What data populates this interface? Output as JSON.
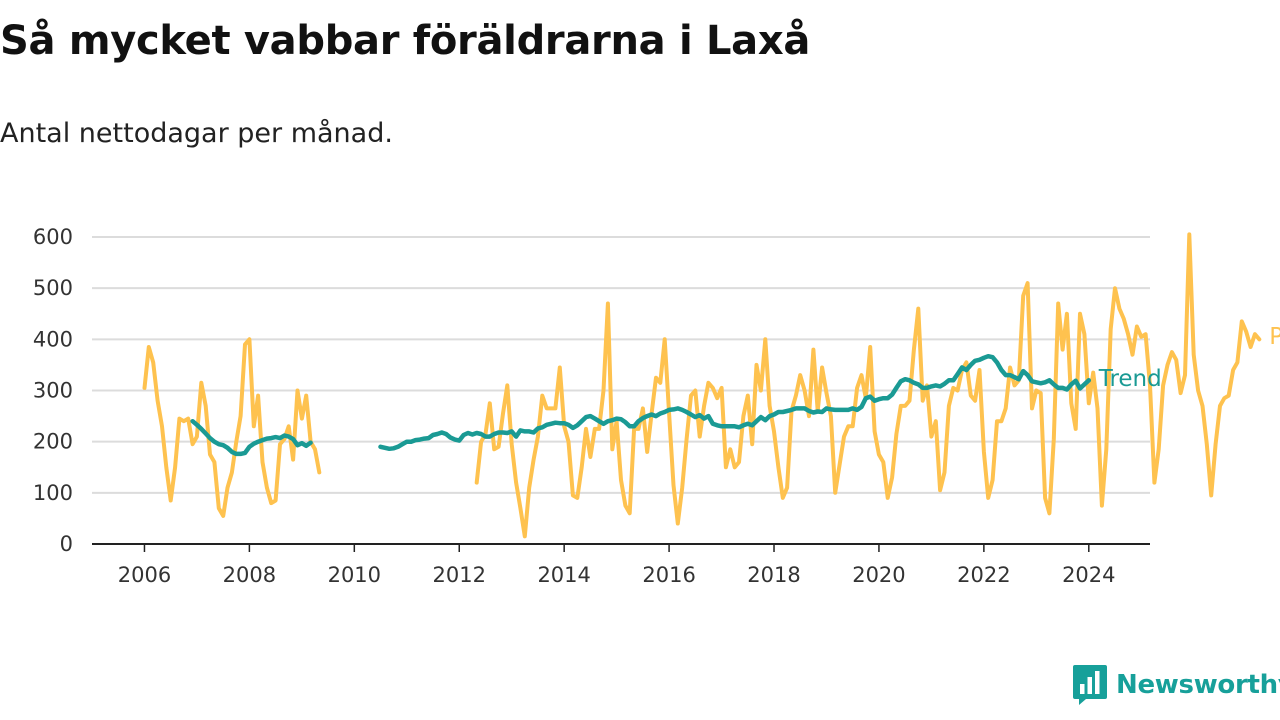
{
  "chart_data": {
    "type": "line",
    "title": "Så mycket vabbar föräldrarna i Laxå",
    "subtitle": "Antal nettodagar per månad.",
    "ylim": [
      0,
      600
    ],
    "yticks": [
      0,
      100,
      200,
      300,
      400,
      500,
      600
    ],
    "xlim": [
      "2005-01",
      "2025-03"
    ],
    "xticks": [
      "2006",
      "2008",
      "2010",
      "2012",
      "2014",
      "2016",
      "2018",
      "2020",
      "2022",
      "2024"
    ],
    "grid": true,
    "legend": "inline labels at line ends",
    "series": [
      {
        "name": "Per månad",
        "color": "#fec24f",
        "start": "2006-01",
        "values": [
          305,
          385,
          355,
          280,
          230,
          150,
          85,
          150,
          245,
          240,
          245,
          195,
          210,
          315,
          270,
          175,
          160,
          70,
          55,
          110,
          140,
          200,
          250,
          390,
          400,
          230,
          290,
          160,
          110,
          80,
          85,
          195,
          205,
          230,
          165,
          300,
          245,
          290,
          200,
          185,
          140,
          null,
          null,
          null,
          null,
          null,
          null,
          null,
          null,
          null,
          null,
          null,
          null,
          null,
          null,
          null,
          null,
          null,
          null,
          null,
          null,
          null,
          null,
          null,
          null,
          null,
          null,
          null,
          null,
          null,
          null,
          null,
          null,
          null,
          null,
          null,
          120,
          200,
          215,
          275,
          185,
          190,
          255,
          310,
          195,
          120,
          70,
          15,
          110,
          165,
          210,
          290,
          265,
          265,
          265,
          345,
          230,
          200,
          95,
          90,
          150,
          225,
          170,
          225,
          225,
          300,
          470,
          185,
          240,
          125,
          75,
          60,
          225,
          225,
          265,
          180,
          255,
          325,
          315,
          400,
          255,
          115,
          40,
          110,
          205,
          290,
          300,
          210,
          270,
          315,
          305,
          285,
          305,
          150,
          185,
          150,
          160,
          250,
          290,
          195,
          350,
          300,
          400,
          270,
          220,
          150,
          90,
          110,
          260,
          290,
          330,
          300,
          250,
          380,
          260,
          345,
          295,
          250,
          100,
          155,
          210,
          230,
          230,
          305,
          330,
          285,
          385,
          220,
          175,
          160,
          90,
          130,
          215,
          270,
          270,
          280,
          380,
          460,
          280,
          310,
          210,
          240,
          105,
          140,
          270,
          305,
          300,
          340,
          355,
          290,
          280,
          340,
          180,
          90,
          125,
          240,
          240,
          265,
          345,
          310,
          320,
          485,
          510,
          265,
          300,
          295,
          90,
          60,
          205,
          470,
          380,
          450,
          275,
          225,
          450,
          410,
          275,
          335,
          265,
          75,
          185,
          420,
          500,
          460,
          440,
          410,
          370,
          425,
          405,
          410,
          310,
          120,
          185,
          310,
          350,
          375,
          360,
          295,
          330,
          605,
          370,
          300,
          270,
          195,
          95,
          195,
          270,
          285,
          290,
          340,
          355,
          435,
          415,
          385,
          410,
          400
        ]
      },
      {
        "name": "Trend",
        "color": "#1a9a94",
        "start": "2006-12",
        "values": [
          240,
          233,
          225,
          216,
          207,
          200,
          195,
          193,
          188,
          180,
          176,
          176,
          178,
          190,
          196,
          200,
          203,
          206,
          207,
          209,
          207,
          212,
          210,
          205,
          193,
          197,
          192,
          198,
          null,
          null,
          null,
          null,
          null,
          null,
          null,
          null,
          null,
          null,
          null,
          null,
          null,
          null,
          null,
          190,
          188,
          186,
          187,
          190,
          195,
          200,
          200,
          203,
          204,
          206,
          207,
          213,
          215,
          218,
          215,
          208,
          204,
          202,
          213,
          217,
          214,
          217,
          215,
          210,
          210,
          215,
          218,
          218,
          217,
          220,
          210,
          222,
          220,
          220,
          218,
          226,
          228,
          233,
          235,
          237,
          236,
          236,
          233,
          227,
          232,
          240,
          248,
          250,
          245,
          240,
          235,
          240,
          242,
          245,
          244,
          238,
          230,
          230,
          240,
          246,
          250,
          253,
          250,
          255,
          258,
          262,
          263,
          265,
          262,
          258,
          253,
          248,
          252,
          245,
          250,
          235,
          232,
          230,
          230,
          230,
          230,
          228,
          232,
          235,
          232,
          240,
          248,
          242,
          250,
          253,
          258,
          258,
          260,
          262,
          265,
          265,
          265,
          260,
          257,
          259,
          258,
          265,
          263,
          262,
          262,
          262,
          262,
          265,
          262,
          268,
          285,
          288,
          280,
          283,
          285,
          285,
          292,
          305,
          318,
          322,
          320,
          315,
          312,
          305,
          305,
          308,
          310,
          308,
          313,
          320,
          320,
          332,
          345,
          340,
          350,
          358,
          360,
          364,
          367,
          365,
          355,
          340,
          330,
          330,
          326,
          322,
          338,
          330,
          318,
          316,
          314,
          316,
          320,
          312,
          305,
          305,
          302,
          312,
          319,
          304,
          312,
          320
        ]
      }
    ]
  },
  "brand": {
    "name": "Newsworthy",
    "color": "#17a09a"
  }
}
